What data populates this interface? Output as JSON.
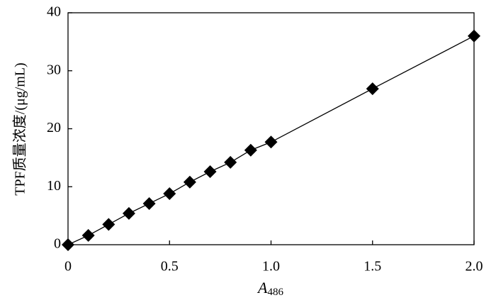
{
  "chart_data": {
    "type": "line",
    "x_label": {
      "main": "A",
      "subscript": "486"
    },
    "y_label": "TPF质量浓度/(μg/mL)",
    "x": [
      0,
      0.1,
      0.2,
      0.3,
      0.4,
      0.5,
      0.6,
      0.7,
      0.8,
      0.9,
      1.0,
      1.5,
      2.0
    ],
    "series": [
      {
        "color": "#000000",
        "values": [
          0,
          1.6,
          3.5,
          5.4,
          7.1,
          8.8,
          10.8,
          12.6,
          14.2,
          16.3,
          17.7,
          26.9,
          36.0
        ]
      }
    ],
    "xlim": [
      0,
      2
    ],
    "xticks": [
      0,
      0.5,
      {
        "value": 1,
        "label": "1.0"
      },
      1.5,
      {
        "value": 2,
        "label": "2.0"
      }
    ],
    "ylim": [
      0,
      40
    ],
    "yticks": [
      0,
      10,
      20,
      30,
      40
    ],
    "grid": false
  }
}
